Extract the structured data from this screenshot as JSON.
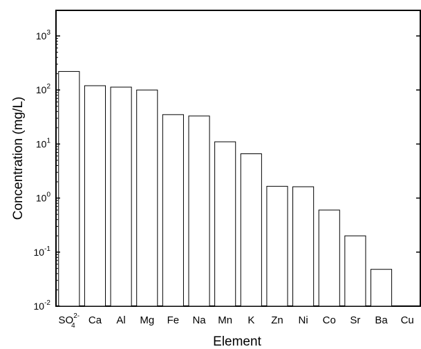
{
  "chart_data": {
    "type": "bar",
    "title": "",
    "xlabel": "Element",
    "ylabel": "Concentration (mg/L)",
    "yscale": "log",
    "ylim": [
      0.01,
      2000
    ],
    "grid": false,
    "legend": "none",
    "categories": [
      "SO42-",
      "Ca",
      "Al",
      "Mg",
      "Fe",
      "Na",
      "Mn",
      "K",
      "Zn",
      "Ni",
      "Co",
      "Sr",
      "Ba",
      "Cu"
    ],
    "category_display": [
      {
        "base": "SO",
        "sub": "4",
        "sup": "2-"
      },
      {
        "base": "Ca"
      },
      {
        "base": "Al"
      },
      {
        "base": "Mg"
      },
      {
        "base": "Fe"
      },
      {
        "base": "Na"
      },
      {
        "base": "Mn"
      },
      {
        "base": "K"
      },
      {
        "base": "Zn"
      },
      {
        "base": "Ni"
      },
      {
        "base": "Co"
      },
      {
        "base": "Sr"
      },
      {
        "base": "Ba"
      },
      {
        "base": "Cu"
      }
    ],
    "values": [
      220,
      120,
      113,
      100,
      35,
      33,
      11,
      6.6,
      1.65,
      1.62,
      0.6,
      0.2,
      0.048,
      null
    ],
    "yticks": [
      {
        "base": "10",
        "exp": "-2"
      },
      {
        "base": "10",
        "exp": "-1"
      },
      {
        "base": "10",
        "exp": "0"
      },
      {
        "base": "10",
        "exp": "1"
      },
      {
        "base": "10",
        "exp": "2"
      },
      {
        "base": "10",
        "exp": "3"
      }
    ],
    "colors": {
      "bar_fill": "#ffffff",
      "bar_stroke": "#000000",
      "axis": "#000000"
    }
  }
}
